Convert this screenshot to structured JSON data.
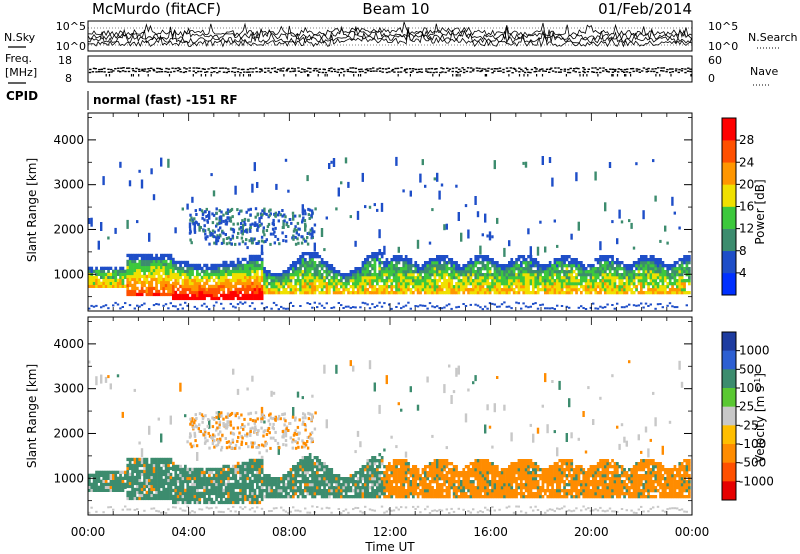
{
  "header": {
    "left_title": "McMurdo (fitACF)",
    "center_title": "Beam 10",
    "right_title": "01/Feb/2014"
  },
  "sky_panel": {
    "left_label": "N.Sky",
    "right_label": "N.Search",
    "left_ticks": [
      "10^5",
      "10^0"
    ],
    "right_ticks": [
      "10^5",
      "10^0"
    ]
  },
  "freq_panel": {
    "left_label_line1": "Freq.",
    "left_label_line2": "[MHz]",
    "left_ticks": [
      "18",
      "8"
    ],
    "right_label": "Nave",
    "right_ticks": [
      "60",
      "0"
    ]
  },
  "cpid_panel": {
    "left_label": "CPID",
    "mode_text": "normal (fast) -151 RF"
  },
  "chart_data": [
    {
      "type": "heatmap",
      "name": "power",
      "ylabel": "Slant Range [km]",
      "xlabel": "",
      "ylim": [
        180,
        4600
      ],
      "yticks": [
        1000,
        2000,
        3000,
        4000
      ],
      "xlim_hours": [
        0,
        24
      ],
      "colorbar": {
        "label": "Power [dB]",
        "ticks": [
          "4",
          "8",
          "12",
          "16",
          "20",
          "24",
          "28"
        ],
        "range": [
          0,
          32
        ],
        "colors": [
          "#0030ff",
          "#1e4ec8",
          "#3c8c6e",
          "#3cc83c",
          "#f0e000",
          "#ff9600",
          "#ff5000",
          "#ff0000"
        ]
      },
      "features": [
        {
          "hours": [
            1.5,
            3.3
          ],
          "range_km": [
            500,
            1450
          ],
          "power_db": 22
        },
        {
          "hours": [
            3.3,
            6.8
          ],
          "range_km": [
            420,
            1350
          ],
          "power_db": 27
        },
        {
          "hours": [
            6.8,
            11.5
          ],
          "range_km": [
            550,
            1300
          ],
          "power_db": 14
        },
        {
          "hours": [
            11.5,
            24.0
          ],
          "range_km": [
            550,
            1350
          ],
          "power_db": 13
        },
        {
          "hours": [
            4.0,
            9.0
          ],
          "range_km": [
            1700,
            2500
          ],
          "power_db": 6
        }
      ]
    },
    {
      "type": "heatmap",
      "name": "velocity",
      "ylabel": "Slant Range [km]",
      "xlabel": "Time UT",
      "ylim": [
        180,
        4600
      ],
      "yticks": [
        1000,
        2000,
        3000,
        4000
      ],
      "xticks": [
        "00:00",
        "04:00",
        "08:00",
        "12:00",
        "16:00",
        "20:00",
        "00:00"
      ],
      "xlim_hours": [
        0,
        24
      ],
      "colorbar": {
        "label": "Velocity [m s^-1]",
        "ticks": [
          "1000",
          "500",
          "100",
          "25",
          "-25",
          "-100",
          "-500",
          "-1000"
        ],
        "colors": [
          "#1e3ca0",
          "#2d5fd2",
          "#3c8c6e",
          "#5ac832",
          "#c8c8c8",
          "#ffbe00",
          "#ff8c00",
          "#ff5000",
          "#e60000"
        ]
      },
      "features": [
        {
          "hours": [
            1.5,
            11.8
          ],
          "range_km": [
            500,
            1500
          ],
          "velocity_ms": 150
        },
        {
          "hours": [
            11.8,
            24.0
          ],
          "range_km": [
            500,
            1500
          ],
          "velocity_ms": -120
        }
      ]
    }
  ]
}
